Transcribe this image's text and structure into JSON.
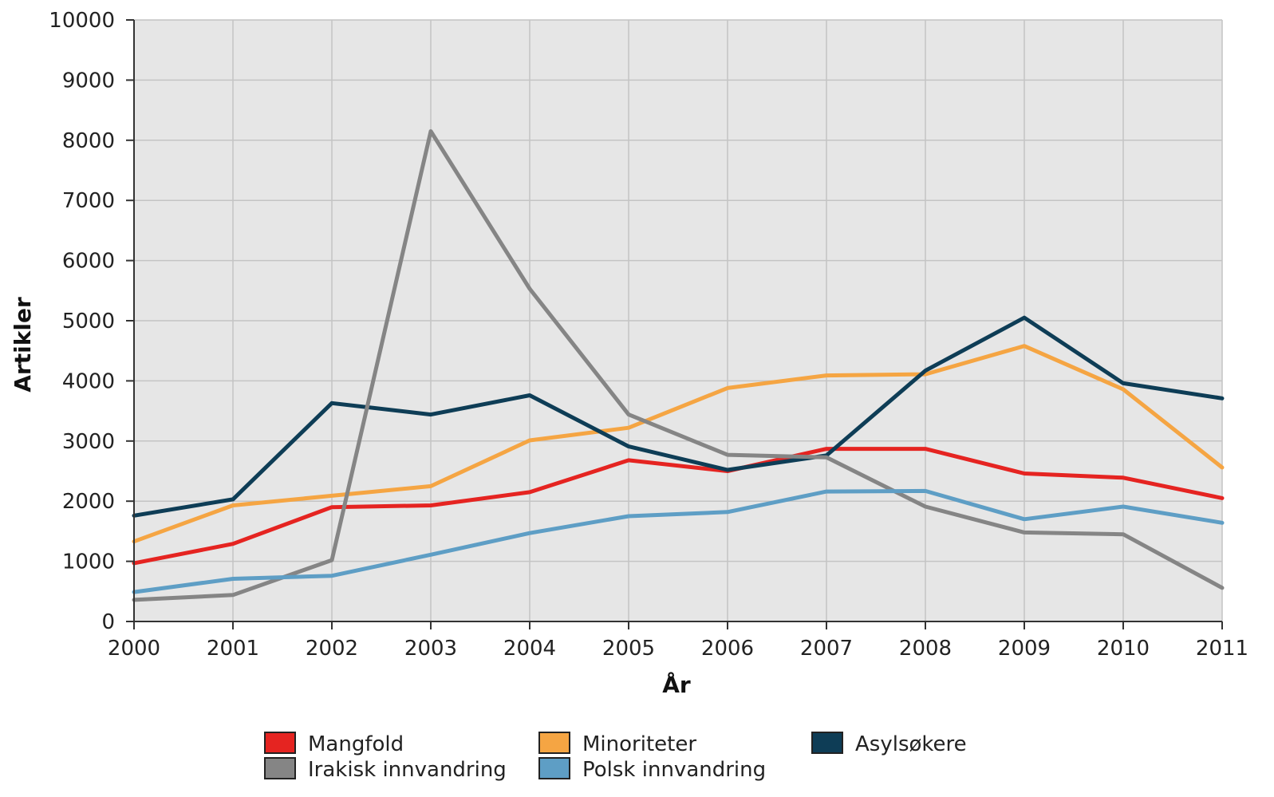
{
  "chart_data": {
    "type": "line",
    "title": "",
    "xlabel": "År",
    "ylabel": "Artikler",
    "x": [
      2000,
      2001,
      2002,
      2003,
      2004,
      2005,
      2006,
      2007,
      2008,
      2009,
      2010,
      2011
    ],
    "x_tick_labels": [
      "2000",
      "2001",
      "2002",
      "2003",
      "2004",
      "2005",
      "2006",
      "2007",
      "2008",
      "2009",
      "2010",
      "2011"
    ],
    "ylim": [
      0,
      10000
    ],
    "y_ticks": [
      0,
      1000,
      2000,
      3000,
      4000,
      5000,
      6000,
      7000,
      8000,
      9000,
      10000
    ],
    "y_tick_labels": [
      "0",
      "1000",
      "2000",
      "3000",
      "4000",
      "5000",
      "6000",
      "7000",
      "8000",
      "9000",
      "10000"
    ],
    "grid": true,
    "legend_position": "bottom",
    "background_color": "#e6e6e6",
    "series": [
      {
        "name": "Mangfold",
        "color": "#e52421",
        "values": [
          970,
          1290,
          1900,
          1930,
          2150,
          2680,
          2500,
          2870,
          2870,
          2460,
          2390,
          2050
        ]
      },
      {
        "name": "Minoriteter",
        "color": "#f5a543",
        "values": [
          1330,
          1930,
          2090,
          2250,
          3010,
          3220,
          3880,
          4090,
          4110,
          4580,
          3860,
          2560
        ]
      },
      {
        "name": "Asylsøkere",
        "color": "#0e3d56",
        "values": [
          1760,
          2030,
          3630,
          3440,
          3760,
          2910,
          2520,
          2760,
          4170,
          5050,
          3960,
          3710
        ]
      },
      {
        "name": "Irakisk innvandring",
        "color": "#858585",
        "values": [
          360,
          440,
          1020,
          8150,
          5530,
          3440,
          2770,
          2730,
          1910,
          1480,
          1450,
          560
        ]
      },
      {
        "name": "Polsk innvandring",
        "color": "#5e9ec5",
        "values": [
          490,
          710,
          760,
          1110,
          1470,
          1750,
          1820,
          2160,
          2170,
          1700,
          1910,
          1640
        ]
      }
    ]
  }
}
